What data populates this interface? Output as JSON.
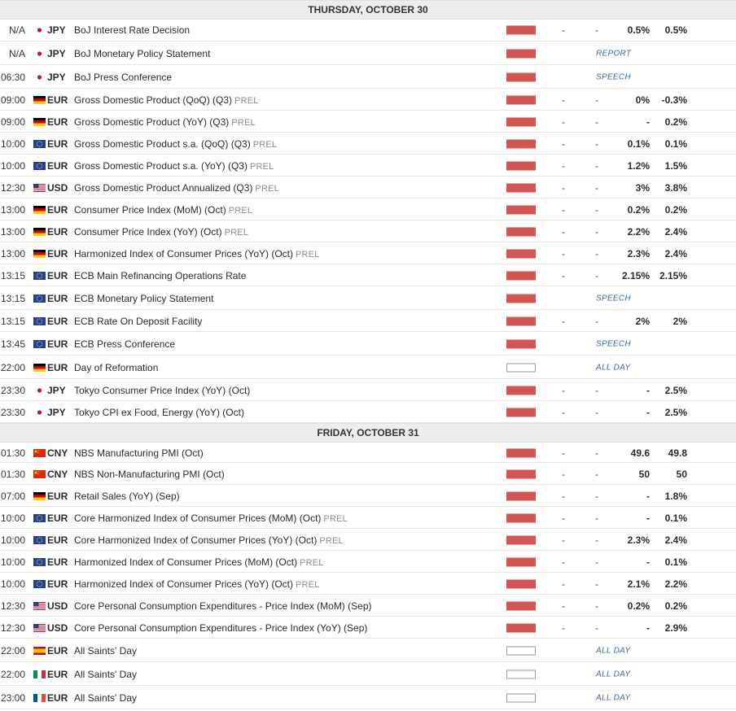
{
  "colors": {
    "impact_high": "#d15550",
    "tag": "#3d6a9a",
    "header_bg": "#ededed"
  },
  "days": [
    {
      "label": "THURSDAY, OCTOBER 30",
      "rows": [
        {
          "time": "N/A",
          "flag": "jp",
          "currency": "JPY",
          "event": "BoJ Interest Rate Decision",
          "prel": "",
          "impact": "high",
          "actual": "-",
          "dev": "-",
          "consensus": "0.5%",
          "previous": "0.5%",
          "tag": ""
        },
        {
          "time": "N/A",
          "flag": "jp",
          "currency": "JPY",
          "event": "BoJ Monetary Policy Statement",
          "prel": "",
          "impact": "high",
          "actual": "",
          "dev": "",
          "consensus": "",
          "previous": "",
          "tag": "REPORT"
        },
        {
          "time": "06:30",
          "flag": "jp",
          "currency": "JPY",
          "event": "BoJ Press Conference",
          "prel": "",
          "impact": "high",
          "actual": "",
          "dev": "",
          "consensus": "",
          "previous": "",
          "tag": "SPEECH"
        },
        {
          "time": "09:00",
          "flag": "de",
          "currency": "EUR",
          "event": "Gross Domestic Product (QoQ) (Q3)",
          "prel": "PREL",
          "impact": "high",
          "actual": "-",
          "dev": "-",
          "consensus": "0%",
          "previous": "-0.3%",
          "tag": ""
        },
        {
          "time": "09:00",
          "flag": "de",
          "currency": "EUR",
          "event": "Gross Domestic Product (YoY) (Q3)",
          "prel": "PREL",
          "impact": "high",
          "actual": "-",
          "dev": "-",
          "consensus": "-",
          "previous": "0.2%",
          "tag": ""
        },
        {
          "time": "10:00",
          "flag": "eu",
          "currency": "EUR",
          "event": "Gross Domestic Product s.a. (QoQ) (Q3)",
          "prel": "PREL",
          "impact": "high",
          "actual": "-",
          "dev": "-",
          "consensus": "0.1%",
          "previous": "0.1%",
          "tag": ""
        },
        {
          "time": "10:00",
          "flag": "eu",
          "currency": "EUR",
          "event": "Gross Domestic Product s.a. (YoY) (Q3)",
          "prel": "PREL",
          "impact": "high",
          "actual": "-",
          "dev": "-",
          "consensus": "1.2%",
          "previous": "1.5%",
          "tag": ""
        },
        {
          "time": "12:30",
          "flag": "us",
          "currency": "USD",
          "event": "Gross Domestic Product Annualized (Q3)",
          "prel": "PREL",
          "impact": "high",
          "actual": "-",
          "dev": "-",
          "consensus": "3%",
          "previous": "3.8%",
          "tag": ""
        },
        {
          "time": "13:00",
          "flag": "de",
          "currency": "EUR",
          "event": "Consumer Price Index (MoM) (Oct)",
          "prel": "PREL",
          "impact": "high",
          "actual": "-",
          "dev": "-",
          "consensus": "0.2%",
          "previous": "0.2%",
          "tag": ""
        },
        {
          "time": "13:00",
          "flag": "de",
          "currency": "EUR",
          "event": "Consumer Price Index (YoY) (Oct)",
          "prel": "PREL",
          "impact": "high",
          "actual": "-",
          "dev": "-",
          "consensus": "2.2%",
          "previous": "2.4%",
          "tag": ""
        },
        {
          "time": "13:00",
          "flag": "de",
          "currency": "EUR",
          "event": "Harmonized Index of Consumer Prices (YoY) (Oct)",
          "prel": "PREL",
          "impact": "high",
          "actual": "-",
          "dev": "-",
          "consensus": "2.3%",
          "previous": "2.4%",
          "tag": ""
        },
        {
          "time": "13:15",
          "flag": "eu",
          "currency": "EUR",
          "event": "ECB Main Refinancing Operations Rate",
          "prel": "",
          "impact": "high",
          "actual": "-",
          "dev": "-",
          "consensus": "2.15%",
          "previous": "2.15%",
          "tag": ""
        },
        {
          "time": "13:15",
          "flag": "eu",
          "currency": "EUR",
          "event": "ECB Monetary Policy Statement",
          "prel": "",
          "impact": "high",
          "actual": "",
          "dev": "",
          "consensus": "",
          "previous": "",
          "tag": "SPEECH"
        },
        {
          "time": "13:15",
          "flag": "eu",
          "currency": "EUR",
          "event": "ECB Rate On Deposit Facility",
          "prel": "",
          "impact": "high",
          "actual": "-",
          "dev": "-",
          "consensus": "2%",
          "previous": "2%",
          "tag": ""
        },
        {
          "time": "13:45",
          "flag": "eu",
          "currency": "EUR",
          "event": "ECB Press Conference",
          "prel": "",
          "impact": "high",
          "actual": "",
          "dev": "",
          "consensus": "",
          "previous": "",
          "tag": "SPEECH"
        },
        {
          "time": "22:00",
          "flag": "de",
          "currency": "EUR",
          "event": "Day of Reformation",
          "prel": "",
          "impact": "none",
          "actual": "",
          "dev": "",
          "consensus": "",
          "previous": "",
          "tag": "ALL DAY"
        },
        {
          "time": "23:30",
          "flag": "jp",
          "currency": "JPY",
          "event": "Tokyo Consumer Price Index (YoY) (Oct)",
          "prel": "",
          "impact": "high",
          "actual": "-",
          "dev": "-",
          "consensus": "-",
          "previous": "2.5%",
          "tag": ""
        },
        {
          "time": "23:30",
          "flag": "jp",
          "currency": "JPY",
          "event": "Tokyo CPI ex Food, Energy (YoY) (Oct)",
          "prel": "",
          "impact": "high",
          "actual": "-",
          "dev": "-",
          "consensus": "-",
          "previous": "2.5%",
          "tag": ""
        }
      ]
    },
    {
      "label": "FRIDAY, OCTOBER 31",
      "rows": [
        {
          "time": "01:30",
          "flag": "cn",
          "currency": "CNY",
          "event": "NBS Manufacturing PMI (Oct)",
          "prel": "",
          "impact": "high",
          "actual": "-",
          "dev": "-",
          "consensus": "49.6",
          "previous": "49.8",
          "tag": ""
        },
        {
          "time": "01:30",
          "flag": "cn",
          "currency": "CNY",
          "event": "NBS Non-Manufacturing PMI (Oct)",
          "prel": "",
          "impact": "high",
          "actual": "-",
          "dev": "-",
          "consensus": "50",
          "previous": "50",
          "tag": ""
        },
        {
          "time": "07:00",
          "flag": "de",
          "currency": "EUR",
          "event": "Retail Sales (YoY) (Sep)",
          "prel": "",
          "impact": "high",
          "actual": "-",
          "dev": "-",
          "consensus": "-",
          "previous": "1.8%",
          "tag": ""
        },
        {
          "time": "10:00",
          "flag": "eu",
          "currency": "EUR",
          "event": "Core Harmonized Index of Consumer Prices (MoM) (Oct)",
          "prel": "PREL",
          "impact": "high",
          "actual": "-",
          "dev": "-",
          "consensus": "-",
          "previous": "0.1%",
          "tag": ""
        },
        {
          "time": "10:00",
          "flag": "eu",
          "currency": "EUR",
          "event": "Core Harmonized Index of Consumer Prices (YoY) (Oct)",
          "prel": "PREL",
          "impact": "high",
          "actual": "-",
          "dev": "-",
          "consensus": "2.3%",
          "previous": "2.4%",
          "tag": ""
        },
        {
          "time": "10:00",
          "flag": "eu",
          "currency": "EUR",
          "event": "Harmonized Index of Consumer Prices (MoM) (Oct)",
          "prel": "PREL",
          "impact": "high",
          "actual": "-",
          "dev": "-",
          "consensus": "-",
          "previous": "0.1%",
          "tag": ""
        },
        {
          "time": "10:00",
          "flag": "eu",
          "currency": "EUR",
          "event": "Harmonized Index of Consumer Prices (YoY) (Oct)",
          "prel": "PREL",
          "impact": "high",
          "actual": "-",
          "dev": "-",
          "consensus": "2.1%",
          "previous": "2.2%",
          "tag": ""
        },
        {
          "time": "12:30",
          "flag": "us",
          "currency": "USD",
          "event": "Core Personal Consumption Expenditures - Price Index (MoM) (Sep)",
          "prel": "",
          "impact": "high",
          "actual": "-",
          "dev": "-",
          "consensus": "0.2%",
          "previous": "0.2%",
          "tag": ""
        },
        {
          "time": "12:30",
          "flag": "us",
          "currency": "USD",
          "event": "Core Personal Consumption Expenditures - Price Index (YoY) (Sep)",
          "prel": "",
          "impact": "high",
          "actual": "-",
          "dev": "-",
          "consensus": "-",
          "previous": "2.9%",
          "tag": ""
        },
        {
          "time": "22:00",
          "flag": "es",
          "currency": "EUR",
          "event": "All Saints' Day",
          "prel": "",
          "impact": "none",
          "actual": "",
          "dev": "",
          "consensus": "",
          "previous": "",
          "tag": "ALL DAY"
        },
        {
          "time": "22:00",
          "flag": "it",
          "currency": "EUR",
          "event": "All Saints' Day",
          "prel": "",
          "impact": "none",
          "actual": "",
          "dev": "",
          "consensus": "",
          "previous": "",
          "tag": "ALL DAY"
        },
        {
          "time": "23:00",
          "flag": "fr",
          "currency": "EUR",
          "event": "All Saints' Day",
          "prel": "",
          "impact": "none",
          "actual": "",
          "dev": "",
          "consensus": "",
          "previous": "",
          "tag": "ALL DAY"
        }
      ]
    }
  ]
}
